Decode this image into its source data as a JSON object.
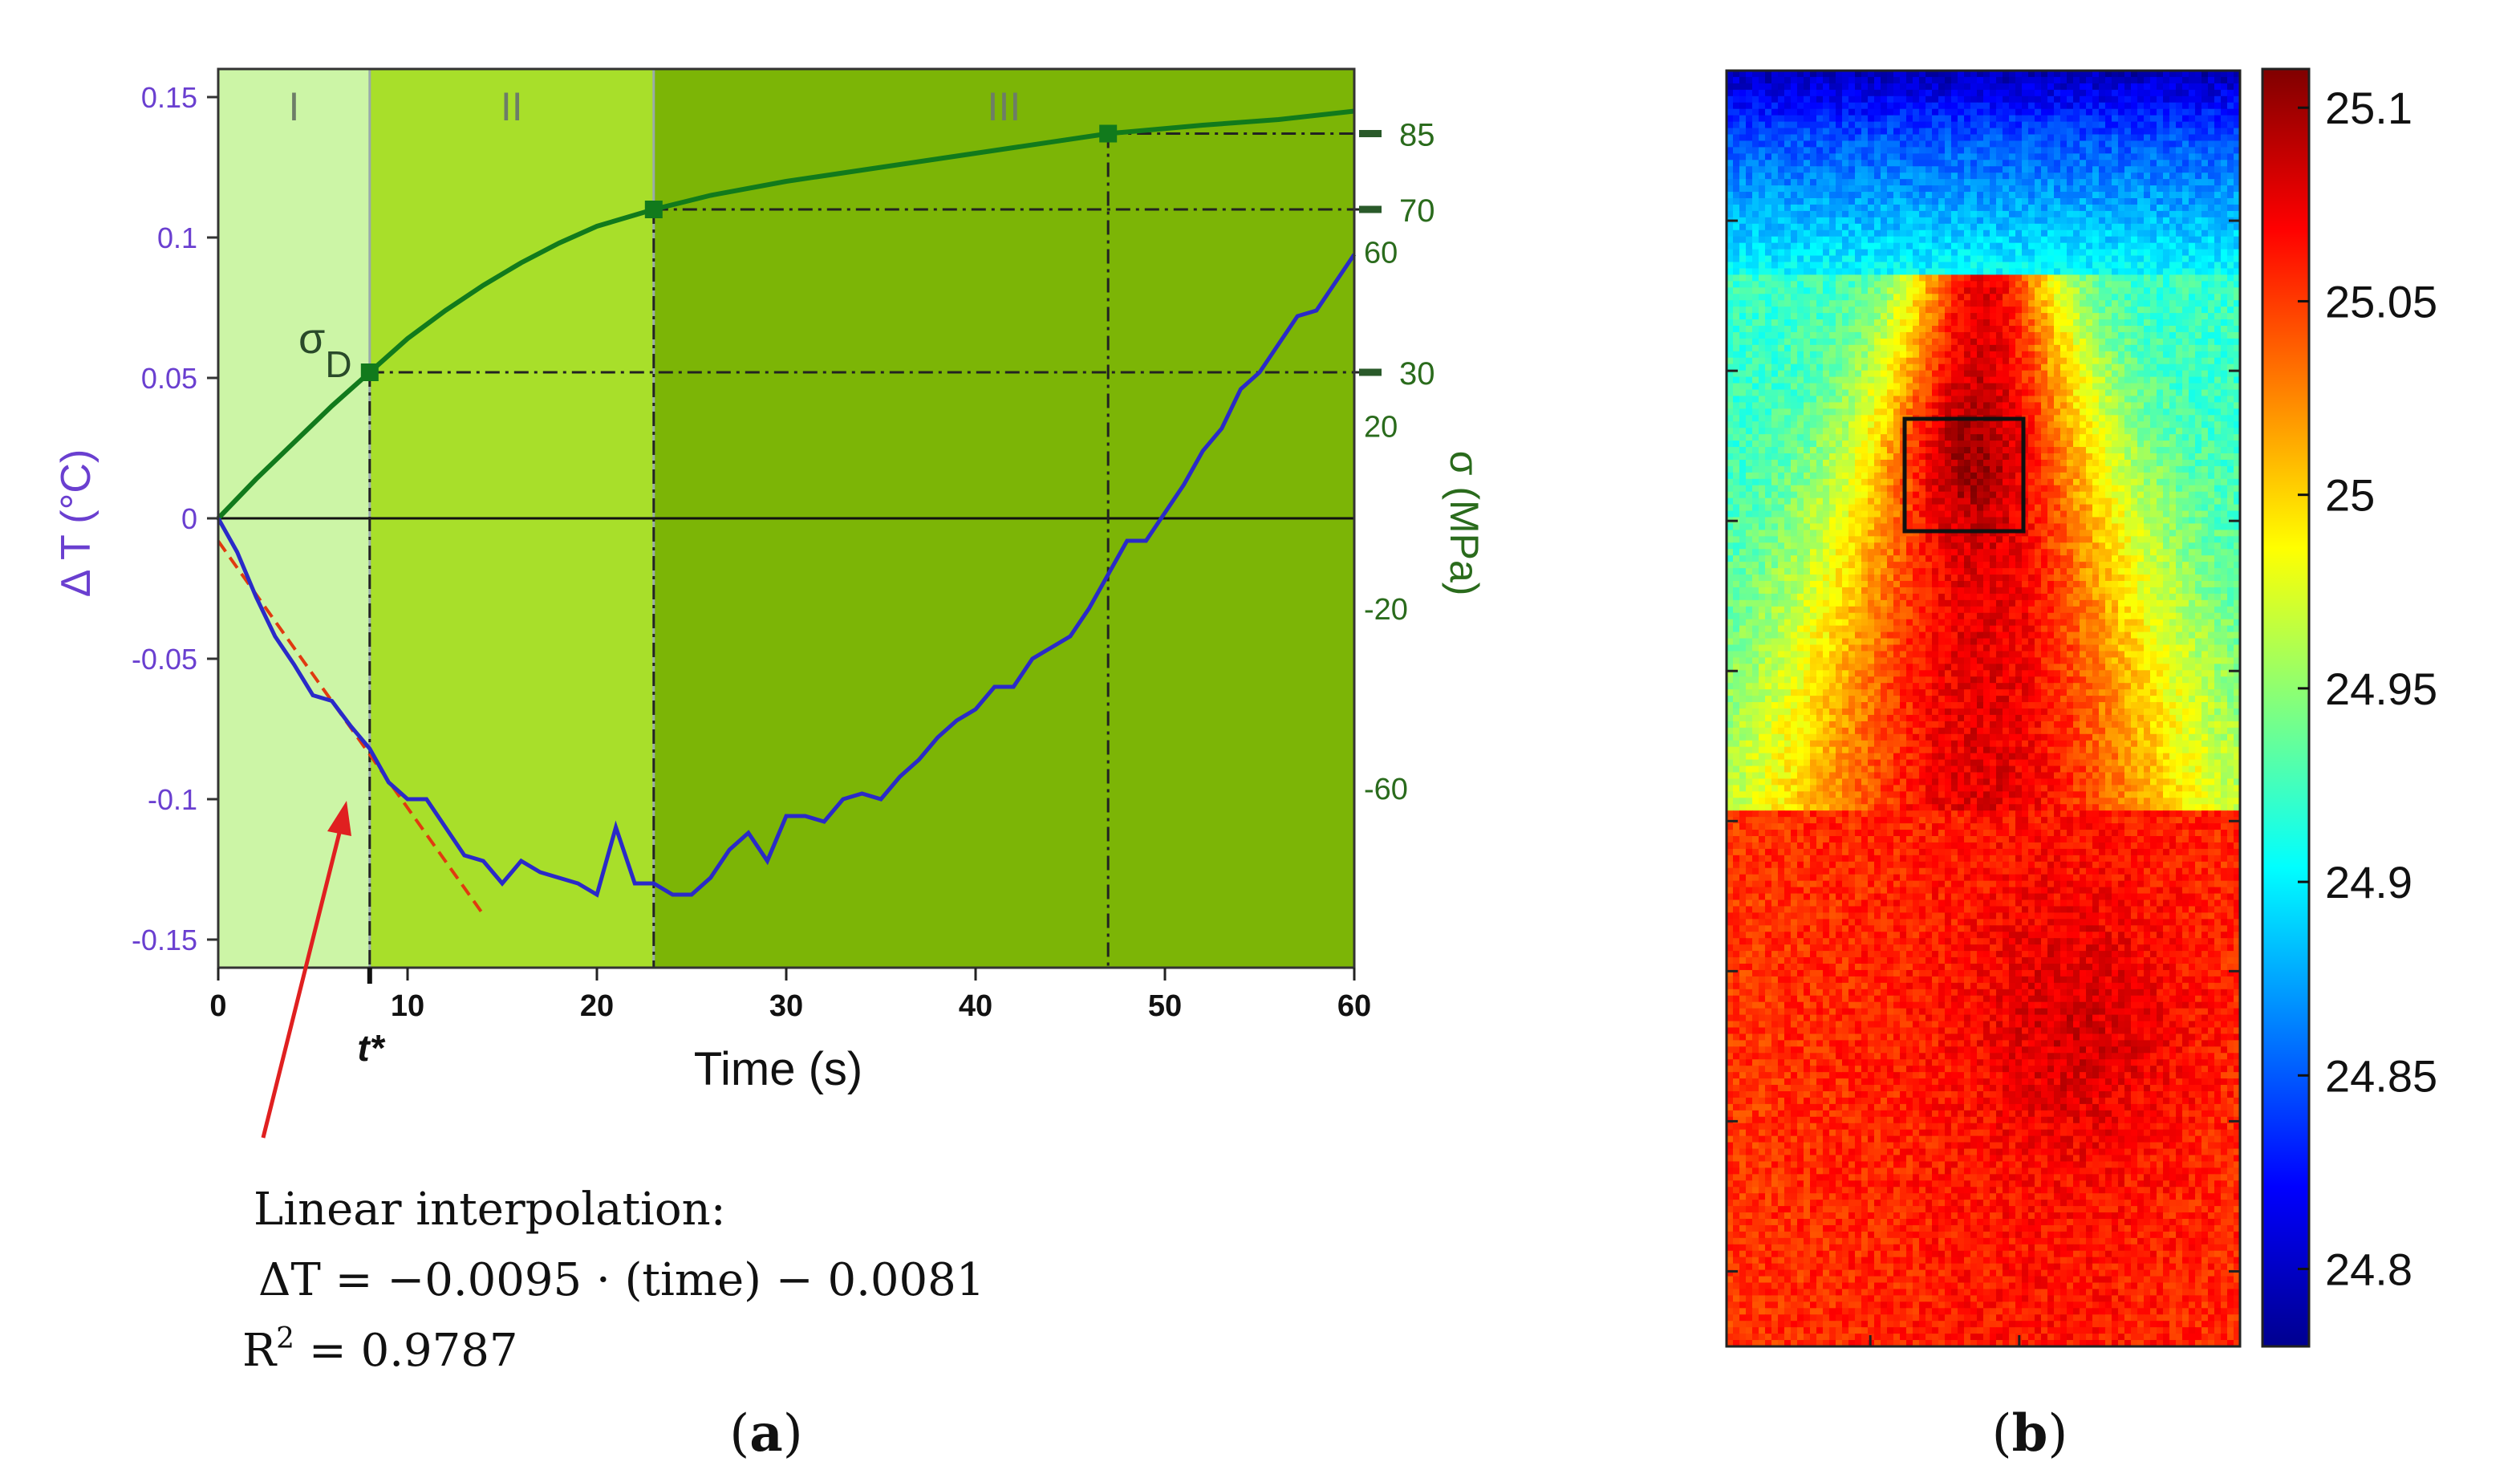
{
  "colors": {
    "region_I": "#ccf5a6",
    "region_II": "#a8df2a",
    "region_III": "#7cb506",
    "delta_t_line": "#2a2ac8",
    "stress_line": "#117a1c",
    "fit_line": "#e03a10",
    "left_axis_text": "#6a3fd0",
    "right_axis_text": "#2a6b1c",
    "arrow": "#e02020"
  },
  "chart_data": [
    {
      "id": "a",
      "type": "line",
      "panel_label": "(a)",
      "panel_letter": "a",
      "xlabel": "Time (s)",
      "ylabel_left": "Δ T (°C)",
      "ylabel_right": "σ (MPa)",
      "xlim": [
        0,
        60
      ],
      "ylim_left": [
        -0.16,
        0.16
      ],
      "x_ticks": [
        0,
        10,
        20,
        30,
        40,
        50,
        60
      ],
      "y_ticks_left": [
        -0.15,
        -0.1,
        -0.05,
        0,
        0.05,
        0.1,
        0.15
      ],
      "y_tick_labels_left": [
        "-0.15",
        "-0.1",
        "-0.05",
        "0",
        "0.05",
        "0.1",
        "0.15"
      ],
      "right_axis_labels": [
        "60",
        "20",
        "-20",
        "-60"
      ],
      "right_axis_label_deltaT": [
        0.095,
        0.033,
        -0.032,
        -0.096
      ],
      "stress_marker_labels": [
        "85",
        "70",
        "30"
      ],
      "regions": [
        {
          "label": "I",
          "x0": 0,
          "x1": 8
        },
        {
          "label": "II",
          "x0": 8,
          "x1": 23
        },
        {
          "label": "III",
          "x0": 23,
          "x1": 60
        }
      ],
      "t_star_label": "t*",
      "t_star": 8,
      "sigma_d_label": "σ",
      "sigma_d_sub": "D",
      "series": [
        {
          "name": "ΔT",
          "x": [
            0,
            1,
            2,
            3,
            4,
            5,
            6,
            7,
            8,
            9,
            10,
            11,
            12,
            13,
            14,
            15,
            16,
            17,
            18,
            19,
            20,
            21,
            22,
            23,
            24,
            25,
            26,
            27,
            28,
            29,
            30,
            31,
            32,
            33,
            34,
            35,
            36,
            37,
            38,
            39,
            40,
            41,
            42,
            43,
            44,
            45,
            46,
            47,
            48,
            49,
            50,
            51,
            52,
            53,
            54,
            55,
            56,
            57,
            58,
            59,
            60
          ],
          "values": [
            0,
            -0.012,
            -0.028,
            -0.042,
            -0.052,
            -0.063,
            -0.065,
            -0.074,
            -0.082,
            -0.094,
            -0.1,
            -0.1,
            -0.11,
            -0.12,
            -0.122,
            -0.13,
            -0.122,
            -0.126,
            -0.128,
            -0.13,
            -0.134,
            -0.11,
            -0.13,
            -0.13,
            -0.134,
            -0.134,
            -0.128,
            -0.118,
            -0.112,
            -0.122,
            -0.106,
            -0.106,
            -0.108,
            -0.1,
            -0.098,
            -0.1,
            -0.092,
            -0.086,
            -0.078,
            -0.072,
            -0.068,
            -0.06,
            -0.06,
            -0.05,
            -0.046,
            -0.042,
            -0.032,
            -0.02,
            -0.008,
            -0.008,
            0.002,
            0.012,
            0.024,
            0.032,
            0.046,
            0.052,
            0.062,
            0.072,
            0.074,
            0.084,
            0.094
          ]
        },
        {
          "name": "σ (scaled, ΔT units)",
          "x": [
            0,
            2,
            4,
            6,
            8,
            10,
            12,
            14,
            16,
            18,
            20,
            22,
            23,
            26,
            30,
            34,
            38,
            42,
            47,
            52,
            56,
            60
          ],
          "values": [
            0,
            0.014,
            0.027,
            0.04,
            0.052,
            0.064,
            0.074,
            0.083,
            0.091,
            0.098,
            0.104,
            0.108,
            0.11,
            0.115,
            0.12,
            0.124,
            0.128,
            0.132,
            0.137,
            0.14,
            0.142,
            0.145
          ]
        },
        {
          "name": "Linear interpolation",
          "x": [
            0,
            14
          ],
          "values": [
            -0.0081,
            -0.1411
          ]
        }
      ],
      "stress_points": [
        {
          "x": 8,
          "y": 0.052,
          "label": "30"
        },
        {
          "x": 23,
          "y": 0.11,
          "label": "70"
        },
        {
          "x": 47,
          "y": 0.137,
          "label": "85"
        }
      ],
      "annotation": {
        "title": "Linear interpolation:",
        "equation": "ΔT = −0.0095 · (time) − 0.0081",
        "r2_prefix": "R",
        "r2_sup": "2",
        "r2_value": " = 0.9787"
      }
    },
    {
      "id": "b",
      "type": "heatmap",
      "panel_label": "(b)",
      "panel_letter": "b",
      "colorbar_ticks": [
        25.1,
        25.05,
        25,
        24.95,
        24.9,
        24.85,
        24.8
      ],
      "colorbar_tick_labels": [
        "25.1",
        "25.05",
        "25",
        "24.95",
        "24.9",
        "24.85",
        "24.8"
      ],
      "value_range": [
        24.78,
        25.11
      ]
    }
  ]
}
